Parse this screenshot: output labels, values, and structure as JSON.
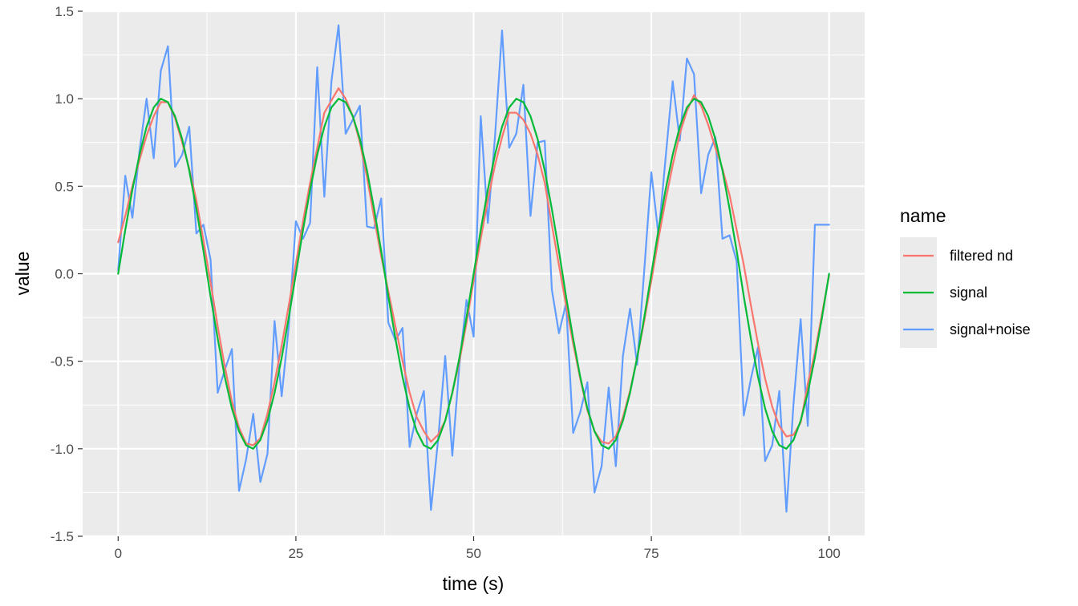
{
  "chart_data": {
    "type": "line",
    "title": "",
    "xlabel": "time (s)",
    "ylabel": "value",
    "xlim": [
      -5,
      105
    ],
    "ylim": [
      -1.5,
      1.5
    ],
    "xticks": [
      0,
      25,
      50,
      75,
      100
    ],
    "xtick_labels": [
      "0",
      "25",
      "50",
      "75",
      "100"
    ],
    "yticks": [
      -1.5,
      -1.0,
      -0.5,
      0.0,
      0.5,
      1.0,
      1.5
    ],
    "ytick_labels": [
      "-1.5",
      "-1.0",
      "-0.5",
      "0.0",
      "0.5",
      "1.0",
      "1.5"
    ],
    "grid": true,
    "legend": {
      "title": "name",
      "position": "right"
    },
    "series": [
      {
        "name": "filtered nd",
        "color": "#F8766D",
        "x": [
          0,
          1,
          2,
          3,
          4,
          5,
          6,
          7,
          8,
          9,
          10,
          11,
          12,
          13,
          14,
          15,
          16,
          17,
          18,
          19,
          20,
          21,
          22,
          23,
          24,
          25,
          26,
          27,
          28,
          29,
          30,
          31,
          32,
          33,
          34,
          35,
          36,
          37,
          38,
          39,
          40,
          41,
          42,
          43,
          44,
          45,
          46,
          47,
          48,
          49,
          50,
          51,
          52,
          53,
          54,
          55,
          56,
          57,
          58,
          59,
          60,
          61,
          62,
          63,
          64,
          65,
          66,
          67,
          68,
          69,
          70,
          71,
          72,
          73,
          74,
          75,
          76,
          77,
          78,
          79,
          80,
          81,
          82,
          83,
          84,
          85,
          86,
          87,
          88,
          89,
          90,
          91,
          92,
          93,
          94,
          95,
          96,
          97,
          98,
          99,
          100
        ],
        "y": [
          0.18,
          0.33,
          0.5,
          0.65,
          0.79,
          0.9,
          0.98,
          0.98,
          0.89,
          0.75,
          0.6,
          0.42,
          0.19,
          -0.05,
          -0.3,
          -0.53,
          -0.73,
          -0.88,
          -0.97,
          -0.98,
          -0.94,
          -0.8,
          -0.62,
          -0.41,
          -0.18,
          0.06,
          0.3,
          0.52,
          0.72,
          0.92,
          0.99,
          1.06,
          1.0,
          0.9,
          0.75,
          0.55,
          0.32,
          0.1,
          -0.1,
          -0.3,
          -0.5,
          -0.68,
          -0.82,
          -0.9,
          -0.96,
          -0.92,
          -0.84,
          -0.68,
          -0.5,
          -0.28,
          -0.04,
          0.2,
          0.42,
          0.62,
          0.78,
          0.92,
          0.92,
          0.88,
          0.8,
          0.68,
          0.52,
          0.28,
          0.05,
          -0.18,
          -0.4,
          -0.6,
          -0.78,
          -0.9,
          -0.96,
          -0.97,
          -0.93,
          -0.82,
          -0.67,
          -0.48,
          -0.27,
          -0.04,
          0.2,
          0.42,
          0.62,
          0.8,
          0.93,
          1.02,
          0.96,
          0.85,
          0.72,
          0.6,
          0.45,
          0.25,
          0.05,
          -0.18,
          -0.4,
          -0.6,
          -0.76,
          -0.87,
          -0.93,
          -0.92,
          -0.85,
          -0.63,
          -0.45,
          -0.23,
          -0.01
        ]
      },
      {
        "name": "signal",
        "color": "#00BA38",
        "x": [
          0,
          1,
          2,
          3,
          4,
          5,
          6,
          7,
          8,
          9,
          10,
          11,
          12,
          13,
          14,
          15,
          16,
          17,
          18,
          19,
          20,
          21,
          22,
          23,
          24,
          25,
          26,
          27,
          28,
          29,
          30,
          31,
          32,
          33,
          34,
          35,
          36,
          37,
          38,
          39,
          40,
          41,
          42,
          43,
          44,
          45,
          46,
          47,
          48,
          49,
          50,
          51,
          52,
          53,
          54,
          55,
          56,
          57,
          58,
          59,
          60,
          61,
          62,
          63,
          64,
          65,
          66,
          67,
          68,
          69,
          70,
          71,
          72,
          73,
          74,
          75,
          76,
          77,
          78,
          79,
          80,
          81,
          82,
          83,
          84,
          85,
          86,
          87,
          88,
          89,
          90,
          91,
          92,
          93,
          94,
          95,
          96,
          97,
          98,
          99,
          100
        ],
        "y": [
          0.0,
          0.25,
          0.48,
          0.68,
          0.84,
          0.95,
          1.0,
          0.98,
          0.9,
          0.77,
          0.59,
          0.37,
          0.13,
          -0.13,
          -0.37,
          -0.59,
          -0.77,
          -0.9,
          -0.98,
          -1.0,
          -0.95,
          -0.84,
          -0.68,
          -0.48,
          -0.25,
          0.0,
          0.25,
          0.48,
          0.68,
          0.84,
          0.95,
          1.0,
          0.98,
          0.9,
          0.77,
          0.59,
          0.37,
          0.13,
          -0.13,
          -0.37,
          -0.59,
          -0.77,
          -0.9,
          -0.98,
          -1.0,
          -0.95,
          -0.84,
          -0.68,
          -0.48,
          -0.25,
          0.0,
          0.25,
          0.48,
          0.68,
          0.84,
          0.95,
          1.0,
          0.98,
          0.9,
          0.77,
          0.59,
          0.37,
          0.13,
          -0.13,
          -0.37,
          -0.59,
          -0.77,
          -0.9,
          -0.98,
          -1.0,
          -0.95,
          -0.84,
          -0.68,
          -0.48,
          -0.25,
          0.0,
          0.25,
          0.48,
          0.68,
          0.84,
          0.95,
          1.0,
          0.98,
          0.9,
          0.77,
          0.59,
          0.37,
          0.13,
          -0.13,
          -0.37,
          -0.59,
          -0.77,
          -0.9,
          -0.98,
          -1.0,
          -0.95,
          -0.84,
          -0.68,
          -0.48,
          -0.25,
          0.0
        ]
      },
      {
        "name": "signal+noise",
        "color": "#619CFF",
        "x": [
          0,
          1,
          2,
          3,
          4,
          5,
          6,
          7,
          8,
          9,
          10,
          11,
          12,
          13,
          14,
          15,
          16,
          17,
          18,
          19,
          20,
          21,
          22,
          23,
          24,
          25,
          26,
          27,
          28,
          29,
          30,
          31,
          32,
          33,
          34,
          35,
          36,
          37,
          38,
          39,
          40,
          41,
          42,
          43,
          44,
          45,
          46,
          47,
          48,
          49,
          50,
          51,
          52,
          53,
          54,
          55,
          56,
          57,
          58,
          59,
          60,
          61,
          62,
          63,
          64,
          65,
          66,
          67,
          68,
          69,
          70,
          71,
          72,
          73,
          74,
          75,
          76,
          77,
          78,
          79,
          80,
          81,
          82,
          83,
          84,
          85,
          86,
          87,
          88,
          89,
          90,
          91,
          92,
          93,
          94,
          95,
          96,
          97,
          98,
          99,
          100
        ],
        "y": [
          0.02,
          0.56,
          0.32,
          0.7,
          1.0,
          0.66,
          1.16,
          1.3,
          0.61,
          0.68,
          0.84,
          0.23,
          0.28,
          0.08,
          -0.68,
          -0.55,
          -0.43,
          -1.24,
          -1.06,
          -0.8,
          -1.19,
          -1.03,
          -0.27,
          -0.7,
          -0.3,
          0.3,
          0.2,
          0.29,
          1.18,
          0.44,
          1.1,
          1.42,
          0.8,
          0.88,
          0.96,
          0.27,
          0.26,
          0.43,
          -0.28,
          -0.38,
          -0.31,
          -0.99,
          -0.8,
          -0.67,
          -1.35,
          -0.95,
          -0.47,
          -1.04,
          -0.52,
          -0.15,
          -0.36,
          0.9,
          0.29,
          0.78,
          1.39,
          0.72,
          0.8,
          1.08,
          0.33,
          0.75,
          0.76,
          -0.09,
          -0.34,
          -0.17,
          -0.91,
          -0.79,
          -0.62,
          -1.25,
          -1.1,
          -0.65,
          -1.1,
          -0.47,
          -0.2,
          -0.52,
          0.02,
          0.58,
          0.22,
          0.66,
          1.1,
          0.76,
          1.23,
          1.14,
          0.46,
          0.68,
          0.78,
          0.2,
          0.22,
          0.07,
          -0.81,
          -0.6,
          -0.42,
          -1.07,
          -0.98,
          -0.67,
          -1.36,
          -0.74,
          -0.26,
          -0.87,
          0.28,
          0.28,
          0.28
        ]
      }
    ]
  }
}
